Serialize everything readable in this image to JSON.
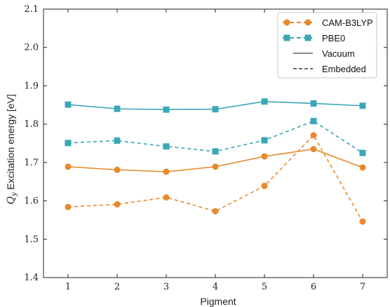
{
  "chart_data": {
    "type": "line",
    "x": [
      1,
      2,
      3,
      4,
      5,
      6,
      7
    ],
    "xlim": [
      0.5,
      7.5
    ],
    "ylim": [
      1.4,
      2.1
    ],
    "xticks": [
      "1",
      "2",
      "3",
      "4",
      "5",
      "6",
      "7"
    ],
    "yticks": [
      "1.4",
      "1.5",
      "1.6",
      "1.7",
      "1.8",
      "1.9",
      "2.0",
      "2.1"
    ],
    "xlabel": "Pigment",
    "ylabel_math": "Q",
    "ylabel_sub": "y",
    "ylabel_rest": " Excitation energy [eV]",
    "grid": false,
    "legend_position": "top-right",
    "legend": {
      "method_entries": [
        {
          "label": "CAM-B3LYP",
          "color": "#e8892b",
          "marker": "circle",
          "linestyle": "dashed"
        },
        {
          "label": "PBE0",
          "color": "#3aa7b6",
          "marker": "square",
          "linestyle": "dashed"
        }
      ],
      "style_entries": [
        {
          "label": "Vacuum",
          "linestyle": "solid"
        },
        {
          "label": "Embedded",
          "linestyle": "dashed"
        }
      ]
    },
    "series": [
      {
        "method": "PBE0",
        "environment": "Vacuum",
        "color": "#3aa7b6",
        "marker": "square",
        "linestyle": "solid",
        "values": [
          1.851,
          1.84,
          1.838,
          1.839,
          1.859,
          1.854,
          1.848
        ]
      },
      {
        "method": "PBE0",
        "environment": "Embedded",
        "color": "#3aa7b6",
        "marker": "square",
        "linestyle": "dashed",
        "values": [
          1.751,
          1.757,
          1.742,
          1.729,
          1.758,
          1.808,
          1.725
        ]
      },
      {
        "method": "CAM-B3LYP",
        "environment": "Vacuum",
        "color": "#e8892b",
        "marker": "circle",
        "linestyle": "solid",
        "values": [
          1.689,
          1.681,
          1.676,
          1.689,
          1.716,
          1.735,
          1.687
        ]
      },
      {
        "method": "CAM-B3LYP",
        "environment": "Embedded",
        "color": "#e8892b",
        "marker": "circle",
        "linestyle": "dashed",
        "values": [
          1.584,
          1.591,
          1.609,
          1.573,
          1.639,
          1.771,
          1.546
        ]
      }
    ]
  }
}
